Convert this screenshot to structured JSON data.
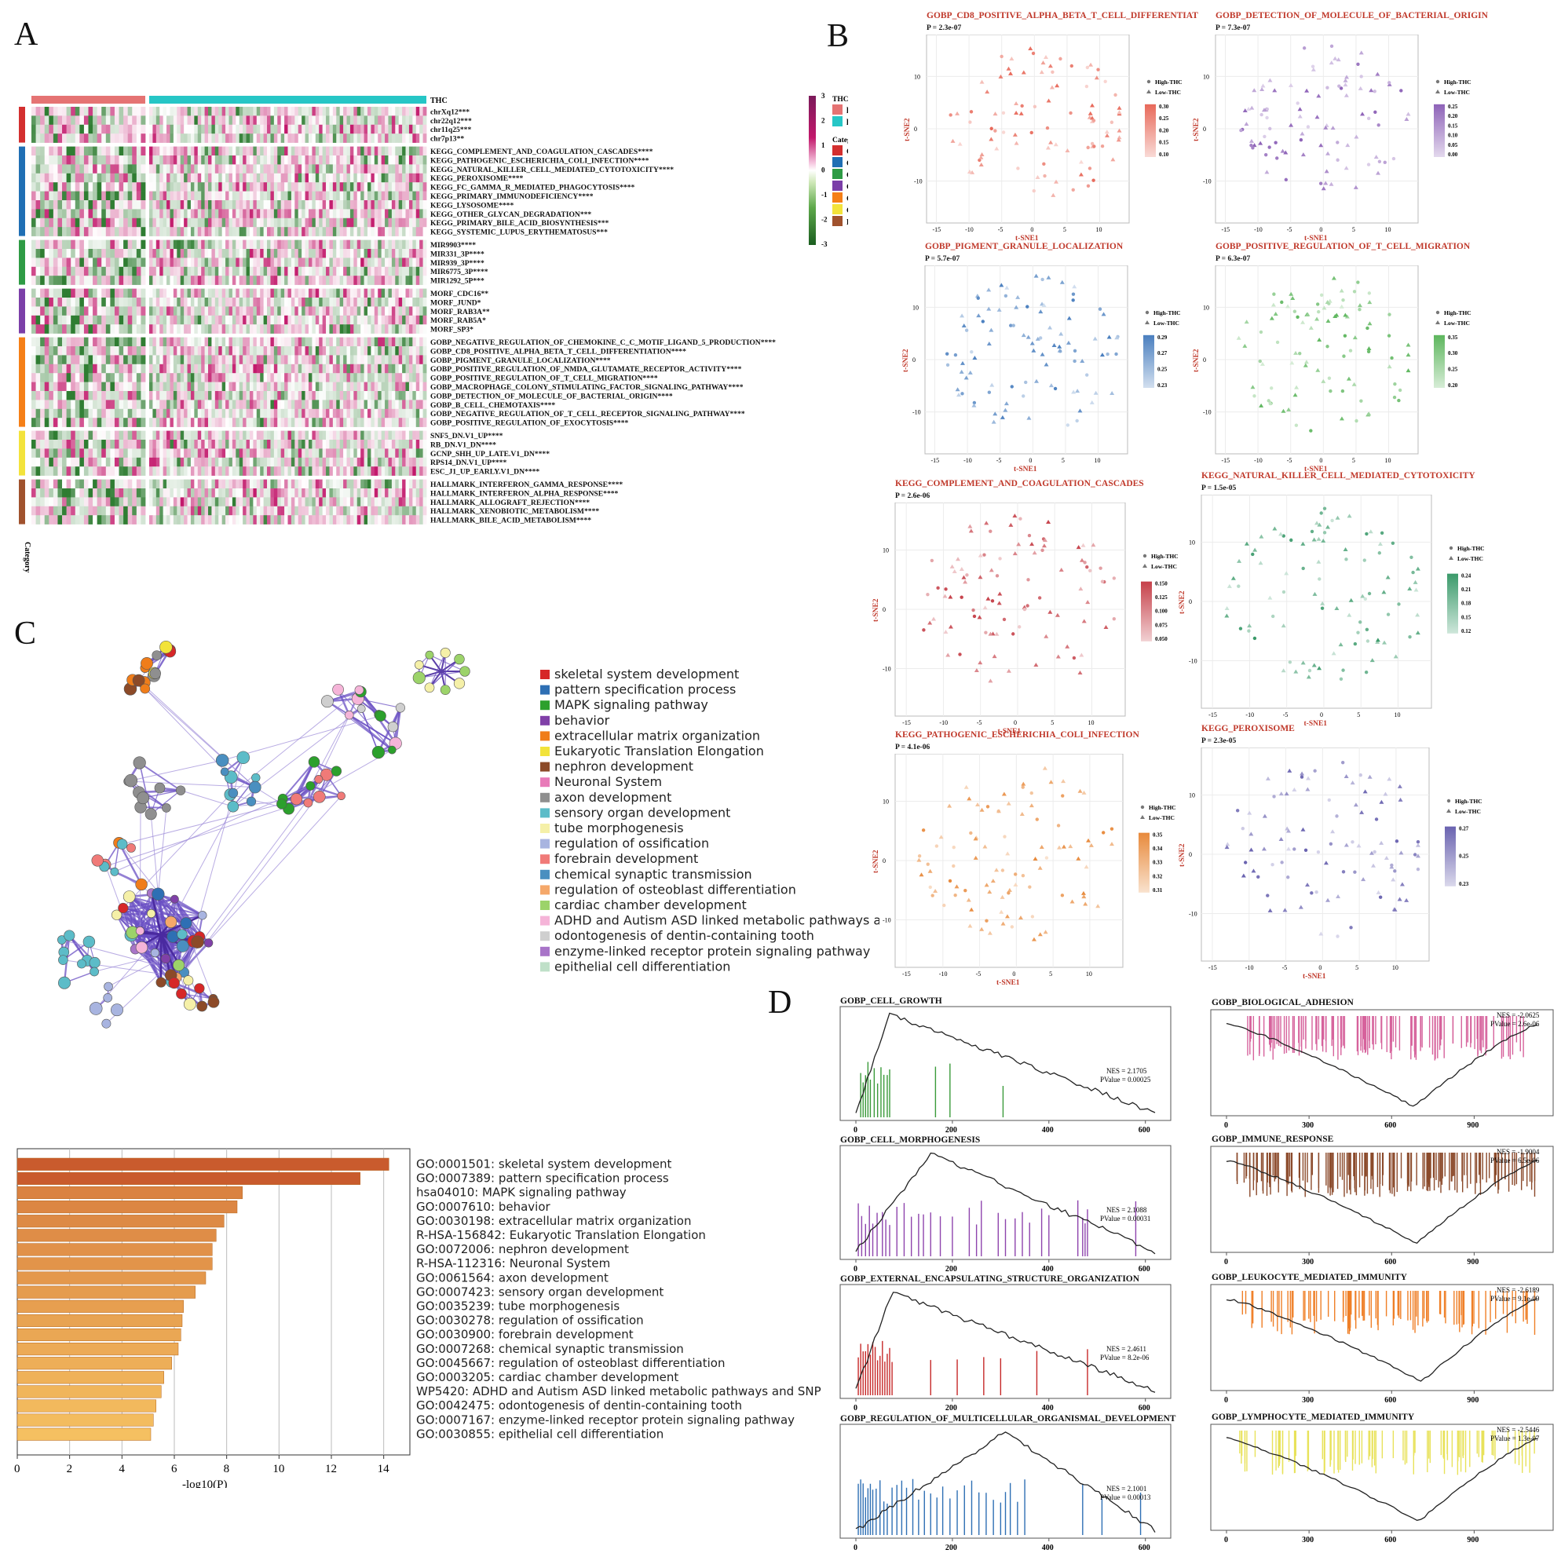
{
  "panel_letters": {
    "a": "A",
    "b": "B",
    "c": "C",
    "d": "D"
  },
  "heatmap": {
    "annotation_label": "THC",
    "category_axis_label": "Category",
    "legend": {
      "scale_ticks": [
        "3",
        "2",
        "1",
        "0",
        "-1",
        "-2",
        "-3"
      ],
      "thc_title": "THC",
      "thc_items": [
        {
          "label": "high",
          "color": "#e57373"
        },
        {
          "label": "low",
          "color": "#26c6c6"
        }
      ],
      "category_title": "Category",
      "category_items": [
        {
          "label": "C1",
          "color": "#d32f2f"
        },
        {
          "label": "C2",
          "color": "#1f6fb4"
        },
        {
          "label": "C3",
          "color": "#2e9b45"
        },
        {
          "label": "C4",
          "color": "#7b3fa8"
        },
        {
          "label": "C5",
          "color": "#f57f17"
        },
        {
          "label": "C6",
          "color": "#f3e33b"
        },
        {
          "label": "H",
          "color": "#a0522d"
        }
      ]
    },
    "groups": [
      {
        "rows": [
          "chrXq12***",
          "chr22q12***",
          "chr11q25***",
          "chr7p13**"
        ]
      },
      {
        "rows": [
          "KEGG_COMPLEMENT_AND_COAGULATION_CASCADES****",
          "KEGG_PATHOGENIC_ESCHERICHIA_COLI_INFECTION****",
          "KEGG_NATURAL_KILLER_CELL_MEDIATED_CYTOTOXICITY****",
          "KEGG_PEROXISOME****",
          "KEGG_FC_GAMMA_R_MEDIATED_PHAGOCYTOSIS****",
          "KEGG_PRIMARY_IMMUNODEFICIENCY****",
          "KEGG_LYSOSOME****",
          "KEGG_OTHER_GLYCAN_DEGRADATION***",
          "KEGG_PRIMARY_BILE_ACID_BIOSYNTHESIS***",
          "KEGG_SYSTEMIC_LUPUS_ERYTHEMATOSUS***"
        ]
      },
      {
        "rows": [
          "MIR9903****",
          "MIR331_3P****",
          "MIR939_3P****",
          "MIR6775_3P****",
          "MIR1292_5P***"
        ]
      },
      {
        "rows": [
          "MORF_CDC16**",
          "MORF_JUND*",
          "MORF_RAB3A**",
          "MORF_RAB5A*",
          "MORF_SP3*"
        ]
      },
      {
        "rows": [
          "GOBP_NEGATIVE_REGULATION_OF_CHEMOKINE_C_C_MOTIF_LIGAND_5_PRODUCTION****",
          "GOBP_CD8_POSITIVE_ALPHA_BETA_T_CELL_DIFFERENTIATION****",
          "GOBP_PIGMENT_GRANULE_LOCALIZATION****",
          "GOBP_POSITIVE_REGULATION_OF_NMDA_GLUTAMATE_RECEPTOR_ACTIVITY****",
          "GOBP_POSITIVE_REGULATION_OF_T_CELL_MIGRATION****",
          "GOBP_MACROPHAGE_COLONY_STIMULATING_FACTOR_SIGNALING_PATHWAY****",
          "GOBP_DETECTION_OF_MOLECULE_OF_BACTERIAL_ORIGIN****",
          "GOBP_B_CELL_CHEMOTAXIS****",
          "GOBP_NEGATIVE_REGULATION_OF_T_CELL_RECEPTOR_SIGNALING_PATHWAY****",
          "GOBP_POSITIVE_REGULATION_OF_EXOCYTOSIS****"
        ]
      },
      {
        "rows": [
          "SNF5_DN.V1_UP****",
          "RB_DN.V1_DN****",
          "GCNP_SHH_UP_LATE.V1_DN****",
          "RPS14_DN.V1_UP****",
          "ESC_J1_UP_EARLY.V1_DN****"
        ]
      },
      {
        "rows": [
          "HALLMARK_INTERFERON_GAMMA_RESPONSE****",
          "HALLMARK_INTERFERON_ALPHA_RESPONSE****",
          "HALLMARK_ALLOGRAFT_REJECTION****",
          "HALLMARK_XENOBIOTIC_METABOLISM****",
          "HALLMARK_BILE_ACID_METABOLISM****"
        ]
      }
    ]
  },
  "tsne_common": {
    "xlabel": "t-SNE1",
    "ylabel": "t-SNE2",
    "legend_high": "High-THC",
    "legend_low": "Low-THC",
    "x_ticks": [
      "-15",
      "-10",
      "-5",
      "0",
      "5",
      "10"
    ],
    "y_ticks": [
      "10",
      "0",
      "-10"
    ]
  },
  "tsne_panels": [
    {
      "title": "GOBP_CD8_POSITIVE_ALPHA_BETA_T_CELL_DIFFERENTIAT",
      "p": "P = 2.3e-07",
      "color": "#e8695a",
      "scale": [
        "0.30",
        "0.25",
        "0.20",
        "0.15",
        "0.10"
      ]
    },
    {
      "title": "GOBP_DETECTION_OF_MOLECULE_OF_BACTERIAL_ORIGIN",
      "p": "P = 7.3e-07",
      "color": "#8e63b8",
      "scale": [
        "0.25",
        "0.20",
        "0.15",
        "0.10",
        "0.05",
        "0.00"
      ]
    },
    {
      "title": "GOBP_PIGMENT_GRANULE_LOCALIZATION",
      "p": "P = 5.7e-07",
      "color": "#4a7fbf",
      "scale": [
        "0.29",
        "0.27",
        "0.25",
        "0.23"
      ]
    },
    {
      "title": "GOBP_POSITIVE_REGULATION_OF_T_CELL_MIGRATION",
      "p": "P = 6.3e-07",
      "color": "#5db65d",
      "scale": [
        "0.35",
        "0.30",
        "0.25",
        "0.20"
      ]
    },
    {
      "title": "KEGG_COMPLEMENT_AND_COAGULATION_CASCADES",
      "p": "P = 2.6e-06",
      "color": "#c6414a",
      "scale": [
        "0.150",
        "0.125",
        "0.100",
        "0.075",
        "0.050"
      ]
    },
    {
      "title": "KEGG_NATURAL_KILLER_CELL_MEDIATED_CYTOTOXICITY",
      "p": "P = 1.5e-05",
      "color": "#3a9a6a",
      "scale": [
        "0.24",
        "0.21",
        "0.18",
        "0.15",
        "0.12"
      ]
    },
    {
      "title": "KEGG_PATHOGENIC_ESCHERICHIA_COLI_INFECTION",
      "p": "P = 4.1e-06",
      "color": "#e88a3c",
      "scale": [
        "0.35",
        "0.34",
        "0.33",
        "0.32",
        "0.31"
      ]
    },
    {
      "title": "KEGG_PEROXISOME",
      "p": "P = 2.3e-05",
      "color": "#6a63b0",
      "scale": [
        "0.27",
        "0.25",
        "0.23"
      ]
    }
  ],
  "network_legend": [
    {
      "label": "skeletal system development",
      "color": "#d62728"
    },
    {
      "label": "pattern specification process",
      "color": "#2e6fb4"
    },
    {
      "label": "MAPK signaling pathway",
      "color": "#2ca02c"
    },
    {
      "label": "behavior",
      "color": "#8040a8"
    },
    {
      "label": "extracellular matrix organization",
      "color": "#f07d1a"
    },
    {
      "label": "Eukaryotic Translation Elongation",
      "color": "#f2e33a"
    },
    {
      "label": "nephron development",
      "color": "#8c4a28"
    },
    {
      "label": "Neuronal System",
      "color": "#e87ab8"
    },
    {
      "label": "axon development",
      "color": "#8f8f8f"
    },
    {
      "label": "sensory organ development",
      "color": "#5cbcc8"
    },
    {
      "label": "tube morphogenesis",
      "color": "#f5f0a8"
    },
    {
      "label": "regulation of ossification",
      "color": "#a8b4e0"
    },
    {
      "label": "forebrain development",
      "color": "#f07a78"
    },
    {
      "label": "chemical synaptic transmission",
      "color": "#4a8fc0"
    },
    {
      "label": "regulation of osteoblast differentiation",
      "color": "#f5a86a"
    },
    {
      "label": "cardiac chamber development",
      "color": "#9cd36a"
    },
    {
      "label": "ADHD and Autism ASD linked metabolic pathways ar",
      "color": "#f5b4d8"
    },
    {
      "label": "odontogenesis of dentin-containing tooth",
      "color": "#cfcfcf"
    },
    {
      "label": "enzyme-linked receptor protein signaling pathway",
      "color": "#a874c8"
    },
    {
      "label": "epithelial cell differentiation",
      "color": "#bfe0c8"
    }
  ],
  "chart_data": [
    {
      "type": "bar",
      "orientation": "horizontal",
      "xlabel": "-log10(P)",
      "xlim": [
        0,
        15
      ],
      "x_ticks": [
        "0",
        "2",
        "4",
        "6",
        "8",
        "10",
        "12",
        "14"
      ],
      "categories": [
        "GO:0001501: skeletal system development",
        "GO:0007389: pattern specification process",
        "hsa04010: MAPK signaling pathway",
        "GO:0007610: behavior",
        "GO:0030198: extracellular matrix organization",
        "R-HSA-156842: Eukaryotic Translation Elongation",
        "GO:0072006: nephron development",
        "R-HSA-112316: Neuronal System",
        "GO:0061564: axon development",
        "GO:0007423: sensory organ development",
        "GO:0035239: tube morphogenesis",
        "GO:0030278: regulation of ossification",
        "GO:0030900: forebrain development",
        "GO:0007268: chemical synaptic transmission",
        "GO:0045667: regulation of osteoblast differentiation",
        "GO:0003205: cardiac chamber development",
        "WP5420: ADHD and Autism ASD linked metabolic pathways and SNP",
        "GO:0042475: odontogenesis of dentin-containing tooth",
        "GO:0007167: enzyme-linked receptor protein signaling pathway",
        "GO:0030855: epithelial cell differentiation"
      ],
      "values": [
        14.2,
        13.1,
        8.6,
        8.4,
        7.9,
        7.6,
        7.45,
        7.45,
        7.2,
        6.8,
        6.35,
        6.3,
        6.25,
        6.15,
        5.9,
        5.6,
        5.5,
        5.3,
        5.2,
        5.1
      ]
    },
    {
      "type": "line",
      "title": "GSEA enrichment plots",
      "series": [
        {
          "name": "GOBP_CELL_GROWTH",
          "nes": "NES = 2.1705",
          "pvalue": "PValue = 0.00025",
          "color": "#3a9a3a",
          "direction": "up",
          "x_ticks": [
            "0",
            "200",
            "400",
            "600"
          ],
          "xmax": 620,
          "peak_x": 70,
          "hits": [
            10,
            15,
            20,
            25,
            30,
            38,
            45,
            52,
            58,
            65,
            70,
            165,
            195,
            305
          ]
        },
        {
          "name": "GOBP_CELL_MORPHOGENESIS",
          "nes": "NES = 2.1088",
          "pvalue": "PValue = 0.00031",
          "color": "#8e44ad",
          "direction": "up",
          "x_ticks": [
            "0",
            "200",
            "400",
            "600"
          ],
          "xmax": 620,
          "peak_x": 155,
          "hits": [
            5,
            12,
            20,
            28,
            35,
            44,
            55,
            62,
            70,
            85,
            100,
            115,
            130,
            140,
            155,
            175,
            200,
            235,
            250,
            260,
            295,
            310,
            330,
            345,
            360,
            385,
            400,
            460,
            470,
            475,
            480,
            580
          ]
        },
        {
          "name": "GOBP_EXTERNAL_ENCAPSULATING_STRUCTURE_ORGANIZATION",
          "nes": "NES = 2.4611",
          "pvalue": "PValue = 8.2e-06",
          "color": "#c62828",
          "direction": "up",
          "x_ticks": [
            "0",
            "200",
            "400",
            "600"
          ],
          "xmax": 620,
          "peak_x": 75,
          "hits": [
            5,
            10,
            15,
            20,
            25,
            30,
            35,
            40,
            45,
            50,
            55,
            60,
            65,
            70,
            75,
            155,
            210,
            265,
            300,
            375,
            480
          ]
        },
        {
          "name": "GOBP_REGULATION_OF_MULTICELLULAR_ORGANISMAL_DEVELOPMENT",
          "nes": "NES = 2.1001",
          "pvalue": "PValue = 0.00013",
          "color": "#2e6fb4",
          "direction": "up",
          "x_ticks": [
            "0",
            "200",
            "400",
            "600"
          ],
          "xmax": 620,
          "peak_x": 310,
          "hits": [
            5,
            10,
            15,
            20,
            25,
            30,
            35,
            42,
            50,
            58,
            65,
            75,
            85,
            95,
            105,
            118,
            130,
            142,
            155,
            168,
            180,
            195,
            210,
            225,
            240,
            255,
            270,
            285,
            300,
            310,
            320,
            335,
            350,
            470,
            510,
            590
          ]
        },
        {
          "name": "GOBP_BIOLOGICAL_ADHESION",
          "nes": "NES = -2.0625",
          "pvalue": "PValue = 2.6e-06",
          "color": "#d6639c",
          "direction": "down",
          "x_ticks": [
            "0",
            "300",
            "600",
            "900"
          ],
          "xmax": 1130,
          "peak_x": 680,
          "hits_range": [
            30,
            1100
          ],
          "hit_count": 130
        },
        {
          "name": "GOBP_IMMUNE_RESPONSE",
          "nes": "NES = -1.9004",
          "pvalue": "PValue = 6.5e-06",
          "color": "#8b4a2b",
          "direction": "down",
          "x_ticks": [
            "0",
            "300",
            "600",
            "900"
          ],
          "xmax": 1130,
          "peak_x": 690,
          "hits_range": [
            20,
            1120
          ],
          "hit_count": 160
        },
        {
          "name": "GOBP_LEUKOCYTE_MEDIATED_IMMUNITY",
          "nes": "NES = -2.6189",
          "pvalue": "PValue = 9.1e-09",
          "color": "#ef7f27",
          "direction": "down",
          "x_ticks": [
            "0",
            "300",
            "600",
            "900"
          ],
          "xmax": 1130,
          "peak_x": 710,
          "hits_range": [
            40,
            1120
          ],
          "hit_count": 90
        },
        {
          "name": "GOBP_LYMPHOCYTE_MEDIATED_IMMUNITY",
          "nes": "NES = -2.5446",
          "pvalue": "PValue = 1.3e-07",
          "color": "#e8e25a",
          "direction": "down",
          "x_ticks": [
            "0",
            "300",
            "600",
            "900"
          ],
          "xmax": 1130,
          "peak_x": 700,
          "hits_range": [
            40,
            1120
          ],
          "hit_count": 90
        }
      ]
    }
  ]
}
